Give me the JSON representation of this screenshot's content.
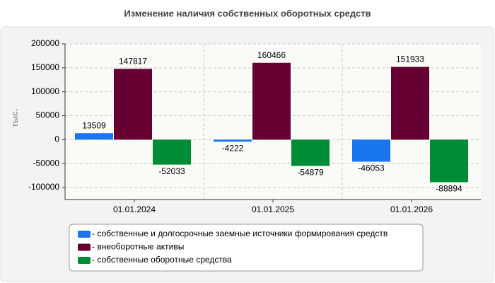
{
  "chart_data": {
    "type": "bar",
    "title": "Изменение наличия собственных оборотных средств",
    "y_label": "тыс.",
    "categories": [
      "01.01.2024",
      "01.01.2025",
      "01.01.2026"
    ],
    "series": [
      {
        "name": "- собственные и долгосрочные заемные источники формирования средств",
        "color": "#1a75f0",
        "values": [
          13509,
          -4222,
          -46053
        ]
      },
      {
        "name": "- внеоборотные активы",
        "color": "#660033",
        "values": [
          147817,
          160466,
          151933
        ]
      },
      {
        "name": "- собственные оборотные средства",
        "color": "#008c35",
        "values": [
          -52033,
          -54879,
          -88894
        ]
      }
    ],
    "ylim": [
      -125000,
      200000
    ],
    "yticks": [
      -100000,
      -50000,
      0,
      50000,
      100000,
      150000,
      200000
    ],
    "grid": true
  }
}
